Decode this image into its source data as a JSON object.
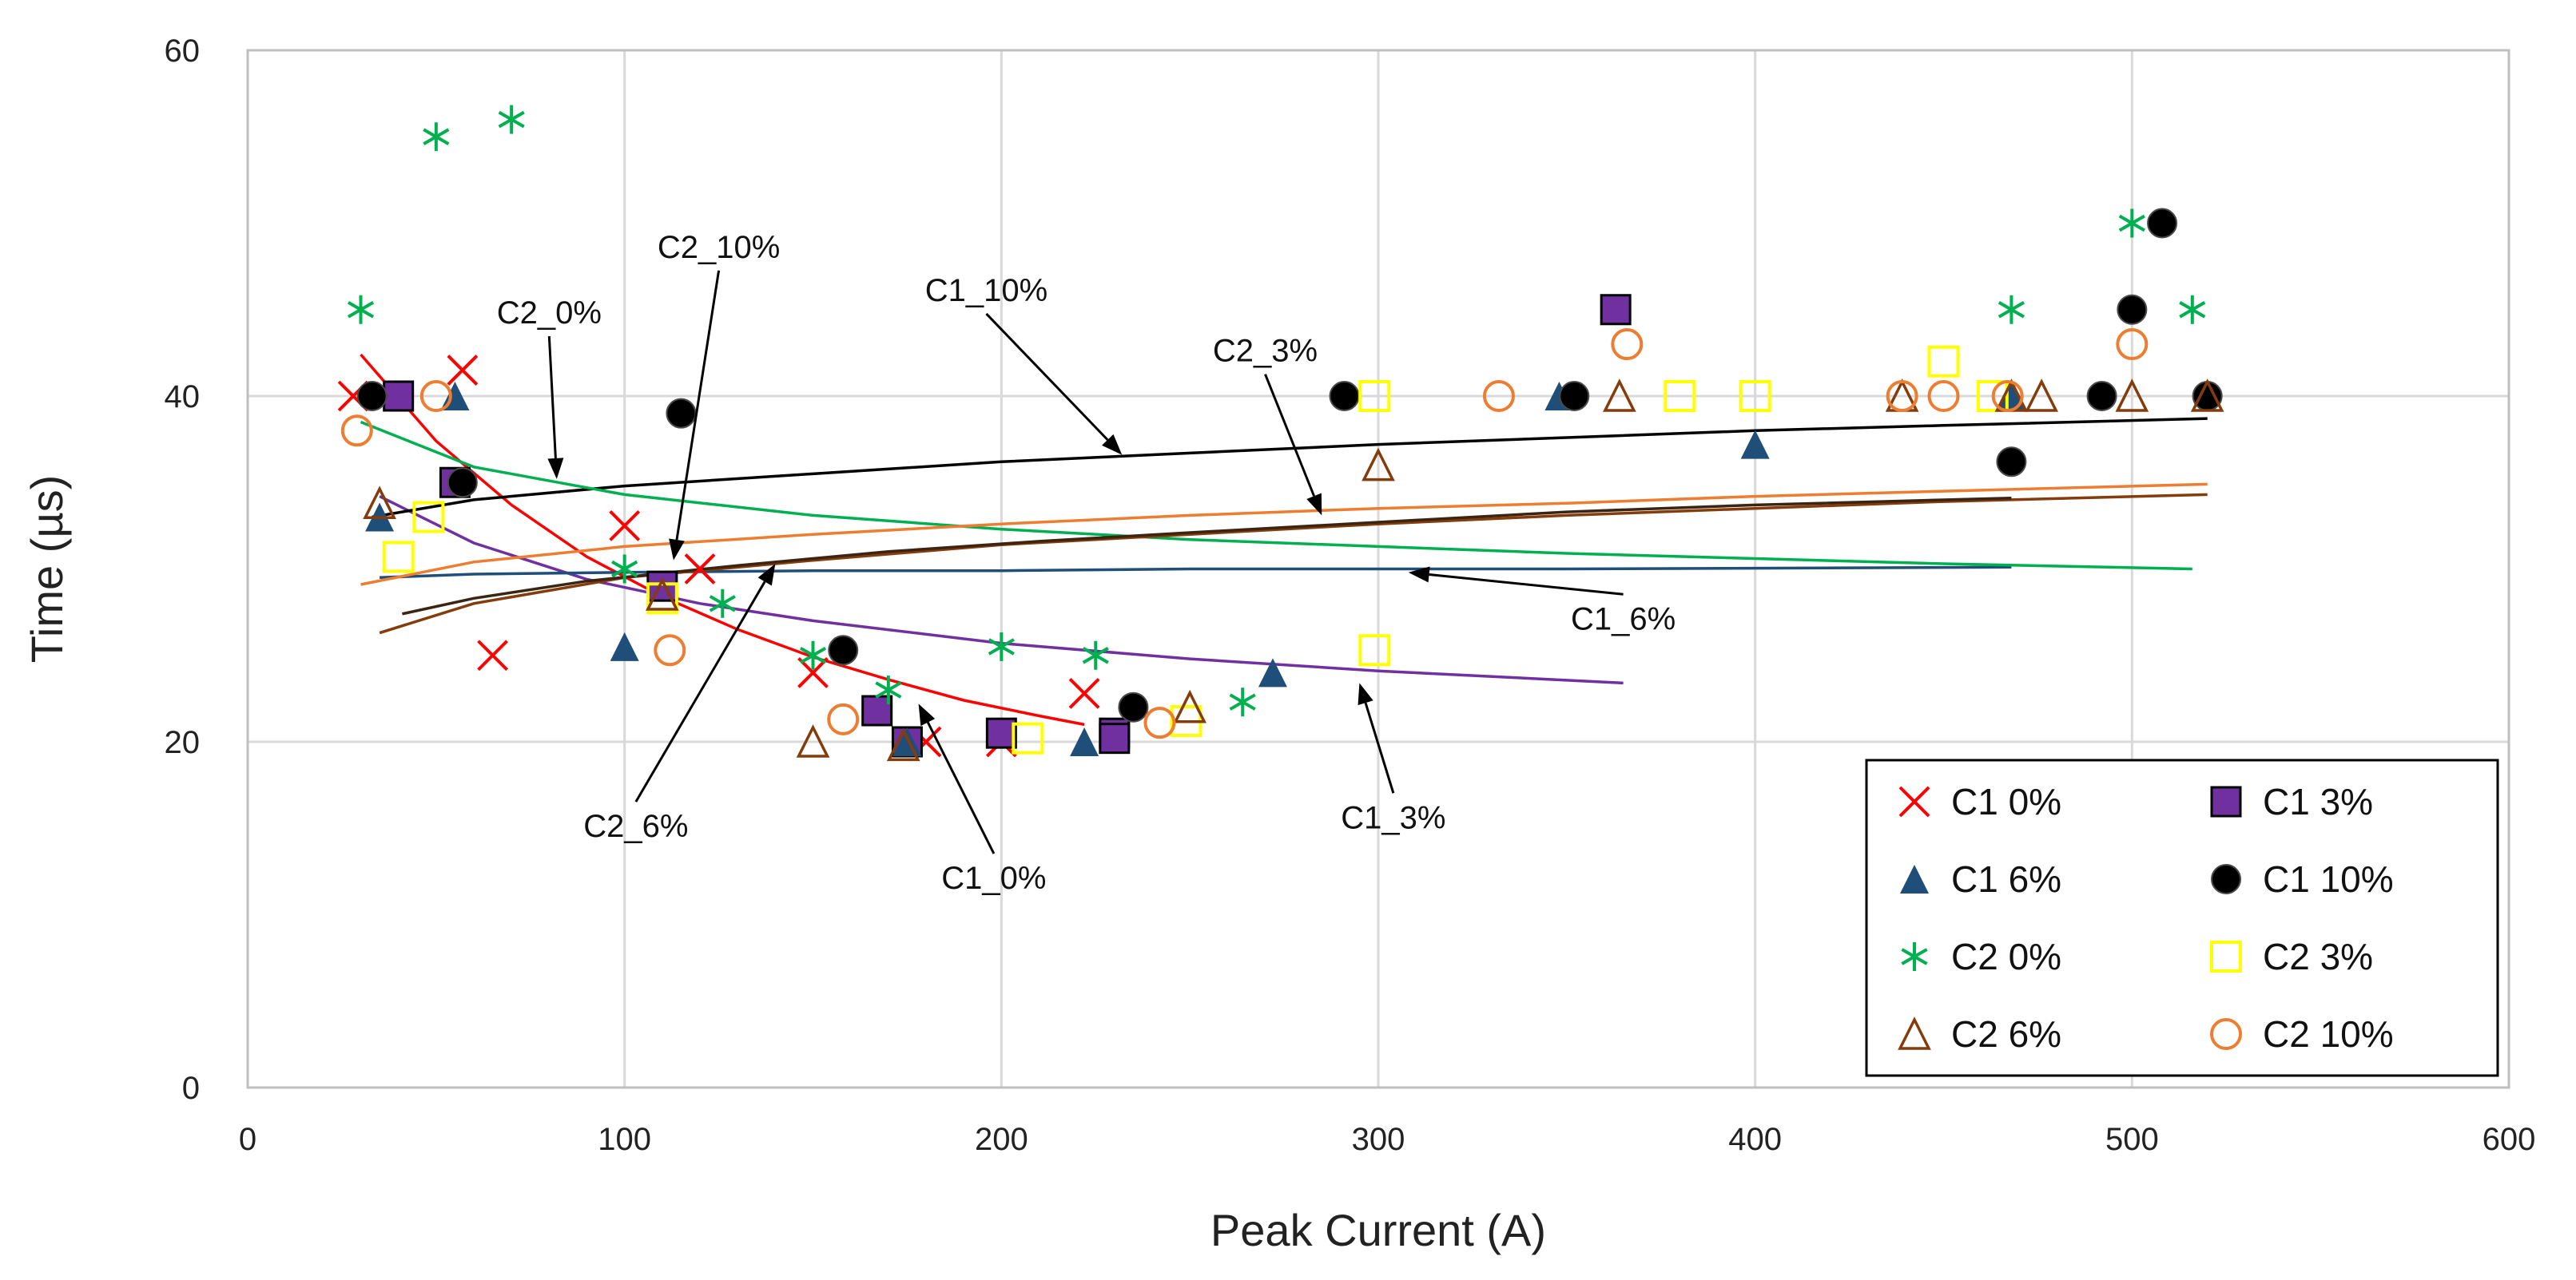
{
  "chart_data": {
    "type": "scatter",
    "title": "",
    "xlabel": "Peak Current (A)",
    "ylabel": "Time (µs)",
    "xlim": [
      0,
      600
    ],
    "ylim": [
      0,
      60
    ],
    "xticks": [
      0,
      100,
      200,
      300,
      400,
      500,
      600
    ],
    "yticks": [
      0,
      20,
      40,
      60
    ],
    "grid": true,
    "legend_position": "bottom-right",
    "series": [
      {
        "name": "C1 0%",
        "marker": "x",
        "color": "#ff0000",
        "points": [
          [
            28,
            40
          ],
          [
            57,
            41.5
          ],
          [
            65,
            25
          ],
          [
            100,
            32.5
          ],
          [
            120,
            30
          ],
          [
            150,
            24
          ],
          [
            180,
            20
          ],
          [
            200,
            20
          ],
          [
            222,
            22.8
          ]
        ]
      },
      {
        "name": "C1 3%",
        "marker": "square",
        "color": "#7030a0",
        "points": [
          [
            40,
            40
          ],
          [
            55,
            35
          ],
          [
            110,
            29
          ],
          [
            167,
            21.8
          ],
          [
            175,
            20
          ],
          [
            200,
            20.5
          ],
          [
            230,
            20.5
          ],
          [
            230,
            20.2
          ],
          [
            363,
            45
          ]
        ]
      },
      {
        "name": "C1 6%",
        "marker": "triangle",
        "color": "#1f4e79",
        "points": [
          [
            35,
            33
          ],
          [
            55,
            40
          ],
          [
            100,
            25.5
          ],
          [
            175,
            20
          ],
          [
            222,
            20
          ],
          [
            272,
            24
          ],
          [
            348,
            40
          ],
          [
            400,
            37.2
          ],
          [
            468,
            40
          ]
        ]
      },
      {
        "name": "C1 10%",
        "marker": "circle-filled",
        "color": "#000000",
        "points": [
          [
            33,
            40
          ],
          [
            57,
            35
          ],
          [
            115,
            39
          ],
          [
            158,
            25.3
          ],
          [
            235,
            22
          ],
          [
            291,
            40
          ],
          [
            352,
            40
          ],
          [
            468,
            36.2
          ],
          [
            492,
            40
          ],
          [
            500,
            45
          ],
          [
            508,
            50
          ],
          [
            520,
            40
          ]
        ]
      },
      {
        "name": "C2 0%",
        "marker": "asterisk",
        "color": "#00b050",
        "points": [
          [
            30,
            45
          ],
          [
            50,
            55
          ],
          [
            70,
            56
          ],
          [
            100,
            30
          ],
          [
            126,
            28
          ],
          [
            150,
            25
          ],
          [
            170,
            23
          ],
          [
            200,
            25.5
          ],
          [
            225,
            25
          ],
          [
            264,
            22.3
          ],
          [
            468,
            45
          ],
          [
            500,
            50
          ],
          [
            516,
            45
          ]
        ]
      },
      {
        "name": "C2 3%",
        "marker": "square-open",
        "color": "#ffff00",
        "points": [
          [
            40,
            30.7
          ],
          [
            48,
            33
          ],
          [
            110,
            28.3
          ],
          [
            207,
            20.2
          ],
          [
            249,
            21.2
          ],
          [
            299,
            40
          ],
          [
            299,
            25.3
          ],
          [
            380,
            40
          ],
          [
            400,
            40
          ],
          [
            450,
            42
          ],
          [
            463,
            40
          ]
        ]
      },
      {
        "name": "C2 6%",
        "marker": "triangle-open",
        "color": "#843c0c",
        "points": [
          [
            35,
            33.8
          ],
          [
            110,
            28.5
          ],
          [
            150,
            20
          ],
          [
            174,
            19.8
          ],
          [
            250,
            22
          ],
          [
            300,
            36
          ],
          [
            364,
            40
          ],
          [
            439,
            40
          ],
          [
            468,
            40
          ],
          [
            476,
            40
          ],
          [
            500,
            40
          ],
          [
            520,
            40
          ]
        ]
      },
      {
        "name": "C2 10%",
        "marker": "circle-open",
        "color": "#ed7d31",
        "points": [
          [
            29,
            38
          ],
          [
            50,
            40
          ],
          [
            112,
            25.3
          ],
          [
            158,
            21.3
          ],
          [
            242,
            21.1
          ],
          [
            332,
            40
          ],
          [
            366,
            43
          ],
          [
            439,
            40
          ],
          [
            450,
            40
          ],
          [
            467,
            40
          ],
          [
            500,
            43
          ]
        ]
      }
    ],
    "trendlines": [
      {
        "label": "C1_0%",
        "color": "#ff0000",
        "x": [
          30,
          50,
          70,
          90,
          110,
          130,
          150,
          170,
          190,
          210,
          222
        ],
        "y": [
          42.4,
          37.4,
          33.7,
          30.7,
          28.4,
          26.5,
          24.9,
          23.6,
          22.4,
          21.5,
          21.0
        ]
      },
      {
        "label": "C1_3%",
        "color": "#7030a0",
        "x": [
          35,
          60,
          90,
          120,
          150,
          200,
          250,
          300,
          365
        ],
        "y": [
          34.2,
          31.5,
          29.4,
          28.0,
          27.0,
          25.7,
          24.8,
          24.1,
          23.4
        ]
      },
      {
        "label": "C1_6%",
        "color": "#1f4e79",
        "x": [
          35,
          60,
          100,
          150,
          200,
          250,
          300,
          350,
          468
        ],
        "y": [
          29.5,
          29.7,
          29.8,
          29.9,
          29.9,
          30.0,
          30.0,
          30.0,
          30.1
        ]
      },
      {
        "label": "C1_10%",
        "color": "#000000",
        "x": [
          33,
          60,
          100,
          150,
          200,
          250,
          300,
          350,
          400,
          450,
          520
        ],
        "y": [
          33.0,
          34.0,
          34.8,
          35.5,
          36.2,
          36.7,
          37.2,
          37.6,
          38.0,
          38.3,
          38.7
        ]
      },
      {
        "label": "C2_0%",
        "color": "#00b050",
        "x": [
          30,
          60,
          100,
          150,
          200,
          250,
          300,
          350,
          400,
          450,
          516
        ],
        "y": [
          38.5,
          35.9,
          34.3,
          33.1,
          32.3,
          31.7,
          31.3,
          30.9,
          30.6,
          30.3,
          30.0
        ]
      },
      {
        "label": "C2_3%",
        "color": "#ed7d31",
        "x": [
          30,
          60,
          100,
          150,
          200,
          250,
          300,
          350,
          400,
          450,
          520
        ],
        "y": [
          29.1,
          30.4,
          31.3,
          32.0,
          32.6,
          33.1,
          33.5,
          33.8,
          34.2,
          34.5,
          34.9
        ]
      },
      {
        "label": "C2_6%",
        "color": "#843c0c",
        "x": [
          35,
          60,
          100,
          150,
          200,
          250,
          300,
          350,
          400,
          450,
          520
        ],
        "y": [
          26.3,
          28.0,
          29.5,
          30.5,
          31.4,
          32.0,
          32.6,
          33.1,
          33.5,
          33.9,
          34.3
        ]
      },
      {
        "label": "C2_10%",
        "color": "#3b2412",
        "x": [
          41,
          60,
          90,
          130,
          170,
          210,
          250,
          300,
          350,
          400,
          468
        ],
        "y": [
          27.4,
          28.3,
          29.3,
          30.2,
          31.0,
          31.6,
          32.1,
          32.7,
          33.3,
          33.7,
          34.1
        ]
      }
    ],
    "annotations": [
      {
        "text": "C2_0%",
        "target": [
          82,
          35.2
        ],
        "text_at": [
          80,
          44.2
        ]
      },
      {
        "text": "C2_10%",
        "target": [
          113,
          30.5
        ],
        "text_at": [
          125,
          48
        ]
      },
      {
        "text": "C1_10%",
        "target": [
          232,
          36.6
        ],
        "text_at": [
          196,
          45.5
        ]
      },
      {
        "text": "C2_3%",
        "target": [
          285,
          33.1
        ],
        "text_at": [
          270,
          42
        ]
      },
      {
        "text": "C1_6%",
        "target": [
          308,
          29.8
        ],
        "text_at": [
          365,
          26.5
        ]
      },
      {
        "text": "C2_6%",
        "target": [
          140,
          30.3
        ],
        "text_at": [
          103,
          14.5
        ]
      },
      {
        "text": "C1_0%",
        "target": [
          178,
          22.2
        ],
        "text_at": [
          198,
          11.5
        ]
      },
      {
        "text": "C1_3%",
        "target": [
          295,
          23.4
        ],
        "text_at": [
          304,
          15
        ]
      }
    ]
  }
}
